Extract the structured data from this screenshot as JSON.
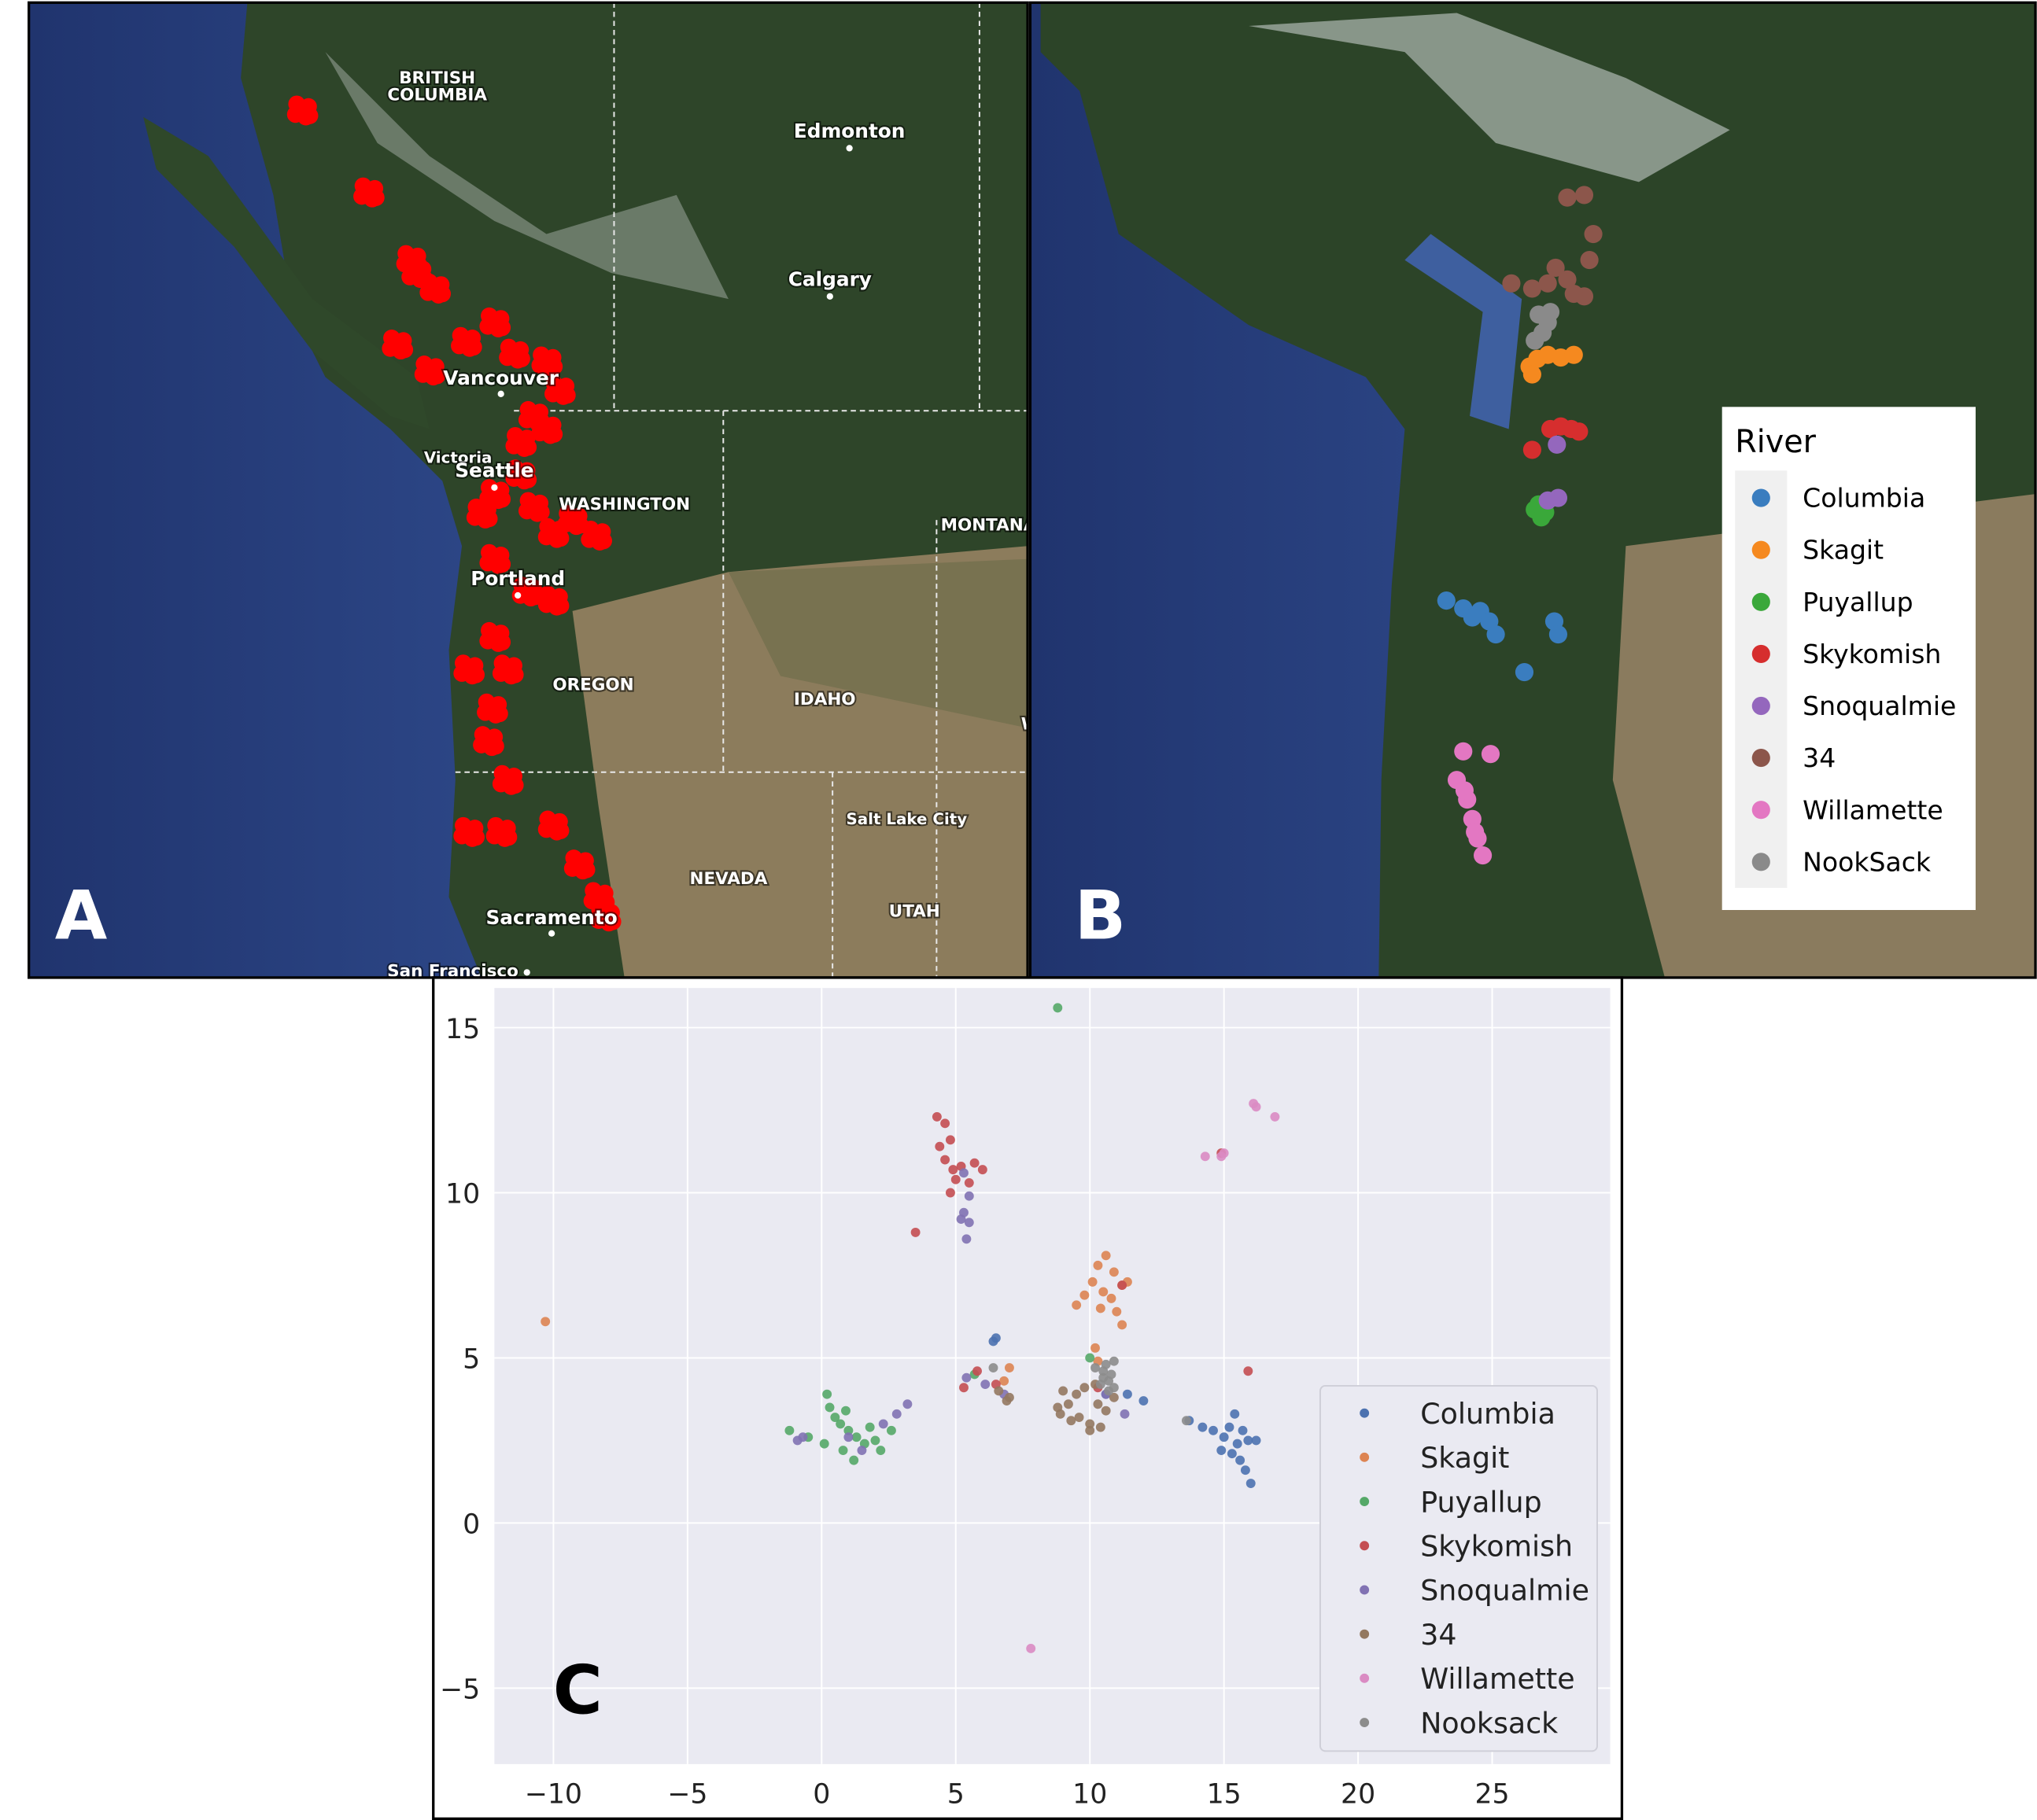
{
  "map_a": {
    "panel": "A",
    "labels": [
      "BRITISH",
      "COLUMBIA",
      "Edmonton",
      "Calgary",
      "Vancouver",
      "Victoria",
      "Seattle",
      "WASHINGTON",
      "MONTANA",
      "Portland",
      "OREGON",
      "IDAHO",
      "WYOMING",
      "Salt Lake City",
      "NEVADA",
      "UTAH",
      "Sacramento",
      "San Francisco"
    ]
  },
  "map_b": {
    "panel": "B",
    "legend_title": "River",
    "legend": [
      {
        "name": "Columbia",
        "color": "#3a7dbf"
      },
      {
        "name": "Skagit",
        "color": "#f5891f"
      },
      {
        "name": "Puyallup",
        "color": "#3aa83a"
      },
      {
        "name": "Skykomish",
        "color": "#d62e2e"
      },
      {
        "name": "Snoqualmie",
        "color": "#9467bd"
      },
      {
        "name": "34",
        "color": "#8c564b"
      },
      {
        "name": "Willamette",
        "color": "#e377c2"
      },
      {
        "name": "NookSack",
        "color": "#8a8a8a"
      }
    ]
  },
  "chart_data": {
    "type": "scatter",
    "panel": "C",
    "xlim": [
      -12.2,
      29.4
    ],
    "ylim": [
      -7.3,
      16.2
    ],
    "xticks": [
      {
        "value": -10,
        "label": "−10"
      },
      {
        "value": -5,
        "label": "−5"
      },
      0,
      5,
      10,
      15,
      20,
      25
    ],
    "yticks": [
      {
        "value": -5,
        "label": "−5"
      },
      0,
      5,
      10,
      15
    ],
    "grid": true,
    "legend": "lower right",
    "series": [
      {
        "name": "Columbia",
        "color": "#4c72b0",
        "x": [
          13.7,
          14.2,
          14.6,
          15.0,
          15.2,
          15.5,
          15.3,
          15.6,
          15.8,
          16.0,
          15.9,
          16.2,
          15.4,
          14.9,
          15.7,
          6.5,
          6.4,
          11.4,
          12.0,
          10.6
        ],
        "values": [
          3.1,
          2.9,
          2.8,
          2.6,
          2.9,
          2.4,
          2.1,
          1.9,
          1.6,
          1.2,
          2.5,
          2.5,
          3.3,
          2.2,
          2.8,
          5.6,
          5.5,
          3.9,
          3.7,
          3.9
        ]
      },
      {
        "name": "Skagit",
        "color": "#dd8452",
        "x": [
          9.5,
          9.8,
          10.1,
          10.3,
          10.6,
          10.9,
          11.2,
          11.4,
          10.5,
          10.8,
          11.0,
          11.2,
          10.4,
          10.2,
          10.3,
          -10.3,
          7.0,
          6.8
        ],
        "values": [
          6.6,
          6.9,
          7.3,
          7.8,
          8.1,
          7.6,
          7.2,
          7.3,
          7.0,
          6.8,
          6.4,
          6.0,
          6.5,
          5.3,
          4.9,
          6.1,
          4.7,
          4.3
        ]
      },
      {
        "name": "Puyallup",
        "color": "#55a868",
        "x": [
          0.2,
          0.3,
          0.5,
          0.7,
          1.0,
          1.3,
          1.6,
          2.0,
          2.6,
          1.2,
          0.8,
          -0.5,
          -1.2,
          0.1,
          1.8,
          0.9,
          8.8,
          5.7,
          10.0,
          2.2
        ],
        "values": [
          3.9,
          3.5,
          3.2,
          3.0,
          2.8,
          2.6,
          2.4,
          2.5,
          2.8,
          1.9,
          2.2,
          2.6,
          2.8,
          2.4,
          2.9,
          3.4,
          15.6,
          4.5,
          5.0,
          2.2
        ]
      },
      {
        "name": "Skykomish",
        "color": "#c44e52",
        "x": [
          4.3,
          4.6,
          4.8,
          4.4,
          4.6,
          4.9,
          5.2,
          5.7,
          6.0,
          5.5,
          4.8,
          5.0,
          3.5,
          5.3,
          5.8,
          11.2,
          15.9,
          14.9,
          6.5,
          10.3
        ],
        "values": [
          12.3,
          12.1,
          11.6,
          11.4,
          11.0,
          10.7,
          10.8,
          10.9,
          10.7,
          10.3,
          10.0,
          10.4,
          8.8,
          4.1,
          4.6,
          7.2,
          4.6,
          11.2,
          4.2,
          4.1
        ]
      },
      {
        "name": "Snoqualmie",
        "color": "#8172b3",
        "x": [
          5.3,
          5.5,
          5.3,
          5.5,
          5.4,
          5.2,
          3.2,
          2.8,
          2.3,
          1.5,
          1.0,
          -0.7,
          -0.9,
          5.4,
          6.1,
          11.3,
          10.6,
          6.8
        ],
        "values": [
          10.6,
          9.9,
          9.4,
          9.1,
          8.6,
          9.2,
          3.6,
          3.3,
          3.0,
          2.2,
          2.6,
          2.6,
          2.5,
          4.4,
          4.2,
          3.3,
          3.9,
          3.9
        ]
      },
      {
        "name": "34",
        "color": "#937860",
        "x": [
          8.9,
          9.2,
          9.5,
          9.8,
          10.2,
          9.6,
          10.0,
          10.4,
          10.9,
          10.3,
          9.3,
          8.8,
          10.6,
          6.9,
          7.0,
          6.6,
          10.0,
          9.0
        ],
        "values": [
          3.3,
          3.6,
          3.9,
          4.1,
          4.2,
          3.2,
          2.8,
          2.9,
          3.8,
          3.6,
          3.1,
          3.5,
          3.4,
          3.7,
          3.8,
          4.0,
          3.0,
          4.0
        ]
      },
      {
        "name": "Willamette",
        "color": "#da8bc3",
        "x": [
          16.1,
          16.2,
          16.9,
          14.3,
          14.9,
          15.0,
          7.8,
          27.4
        ],
        "values": [
          12.7,
          12.6,
          12.3,
          11.1,
          11.1,
          11.2,
          -3.8,
          -6.2
        ]
      },
      {
        "name": "Nooksack",
        "color": "#8c8c8c",
        "x": [
          10.4,
          10.5,
          10.6,
          10.7,
          10.8,
          10.9,
          10.5,
          10.2,
          6.4,
          13.6,
          10.7,
          10.9
        ],
        "values": [
          4.2,
          4.6,
          4.8,
          4.3,
          4.5,
          4.1,
          4.4,
          4.7,
          4.7,
          3.1,
          4.0,
          4.9
        ]
      }
    ]
  }
}
